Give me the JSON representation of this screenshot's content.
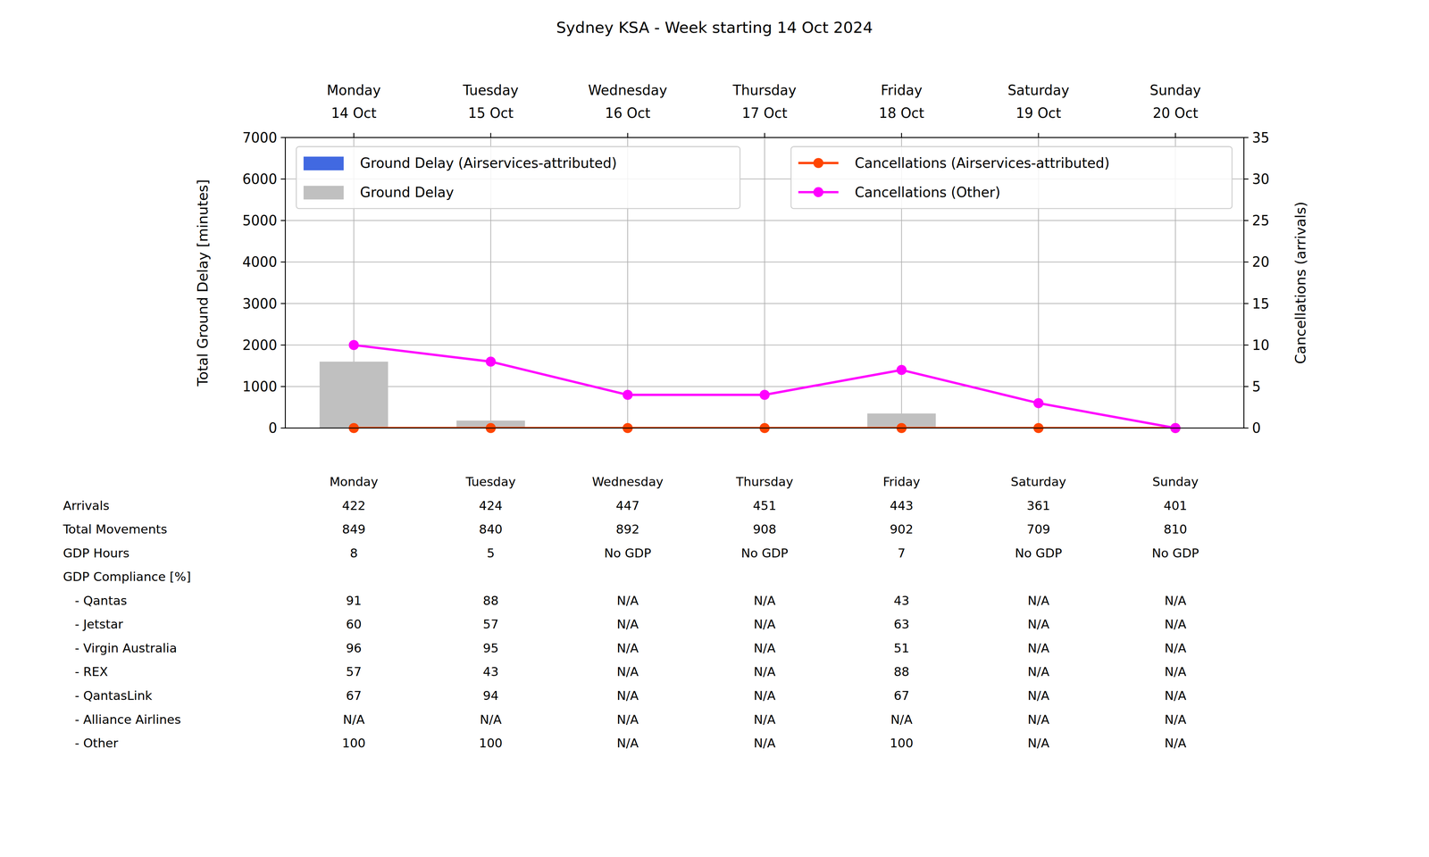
{
  "chart_data": {
    "type": "bar",
    "title": "Sydney KSA - Week starting 14 Oct 2024",
    "categories": [
      "Monday",
      "Tuesday",
      "Wednesday",
      "Thursday",
      "Friday",
      "Saturday",
      "Sunday"
    ],
    "dates": [
      "14 Oct",
      "15 Oct",
      "16 Oct",
      "17 Oct",
      "18 Oct",
      "19 Oct",
      "20 Oct"
    ],
    "y_label": "Total Ground Delay [minutes]",
    "y2_label": "Cancellations (arrivals)",
    "ylim": [
      0,
      7000
    ],
    "yticks": [
      0,
      1000,
      2000,
      3000,
      4000,
      5000,
      6000,
      7000
    ],
    "y2lim": [
      0,
      35
    ],
    "y2ticks": [
      0,
      5,
      10,
      15,
      20,
      25,
      30,
      35
    ],
    "grid": true,
    "legend": "upper",
    "series": [
      {
        "name": "Ground Delay (Airservices-attributed)",
        "type": "bar",
        "color": "#4169e1",
        "values": [
          0,
          0,
          0,
          0,
          0,
          0,
          0
        ]
      },
      {
        "name": "Ground Delay",
        "type": "bar",
        "color": "#c0c0c0",
        "values": [
          1600,
          180,
          0,
          0,
          350,
          0,
          0
        ]
      },
      {
        "name": "Cancellations (Airservices-attributed)",
        "type": "line",
        "axis": "y2",
        "color": "#ff4500",
        "marker": "circle",
        "values": [
          0,
          0,
          0,
          0,
          0,
          0,
          0
        ]
      },
      {
        "name": "Cancellations (Other)",
        "type": "line",
        "axis": "y2",
        "color": "#ff00ff",
        "marker": "circle",
        "values": [
          10,
          8,
          4,
          4,
          7,
          3,
          0
        ]
      }
    ]
  },
  "table": {
    "columns": [
      "Monday",
      "Tuesday",
      "Wednesday",
      "Thursday",
      "Friday",
      "Saturday",
      "Sunday"
    ],
    "rows": [
      {
        "label": "Arrivals",
        "cells": [
          422,
          424,
          447,
          451,
          443,
          361,
          401
        ]
      },
      {
        "label": "Total Movements",
        "cells": [
          849,
          840,
          892,
          908,
          902,
          709,
          810
        ]
      },
      {
        "label": "GDP Hours",
        "cells": [
          8,
          5,
          "No GDP",
          "No GDP",
          7,
          "No GDP",
          "No GDP"
        ]
      },
      {
        "label": "GDP Compliance [%]",
        "cells": [],
        "rows": [
          {
            "label": "- Qantas",
            "cells": [
              91,
              88,
              "N/A",
              "N/A",
              43,
              "N/A",
              "N/A"
            ]
          },
          {
            "label": "- Jetstar",
            "cells": [
              60,
              57,
              "N/A",
              "N/A",
              63,
              "N/A",
              "N/A"
            ]
          },
          {
            "label": "- Virgin Australia",
            "cells": [
              96,
              95,
              "N/A",
              "N/A",
              51,
              "N/A",
              "N/A"
            ]
          },
          {
            "label": "- REX",
            "cells": [
              57,
              43,
              "N/A",
              "N/A",
              88,
              "N/A",
              "N/A"
            ]
          },
          {
            "label": "- QantasLink",
            "cells": [
              67,
              94,
              "N/A",
              "N/A",
              67,
              "N/A",
              "N/A"
            ]
          },
          {
            "label": "- Alliance Airlines",
            "cells": [
              "N/A",
              "N/A",
              "N/A",
              "N/A",
              "N/A",
              "N/A",
              "N/A"
            ]
          },
          {
            "label": "- Other",
            "cells": [
              100,
              100,
              "N/A",
              "N/A",
              100,
              "N/A",
              "N/A"
            ]
          }
        ]
      }
    ]
  }
}
